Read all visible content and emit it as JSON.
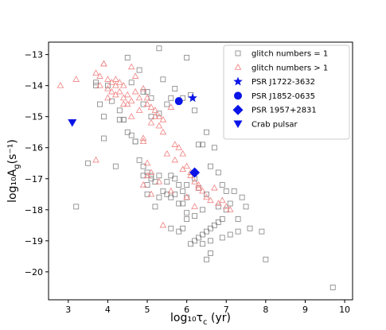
{
  "chart_data": {
    "type": "scatter",
    "xlabel": "log₁₀τ",
    "xlabel_sub": "c",
    "xlabel_unit": " (yr)",
    "ylabel": "log₁₀A",
    "ylabel_sub": "g",
    "ylabel_unit": "(s⁻¹)",
    "xlim": [
      2.5,
      10.2
    ],
    "ylim": [
      -20.9,
      -12.6
    ],
    "xticks": [
      "3",
      "4",
      "5",
      "6",
      "7",
      "8",
      "9",
      "10"
    ],
    "yticks": [
      "−13",
      "−14",
      "−15",
      "−16",
      "−17",
      "−18",
      "−19",
      "−20"
    ],
    "xtick_values": [
      3,
      4,
      5,
      6,
      7,
      8,
      9,
      10
    ],
    "ytick_values": [
      -13,
      -14,
      -15,
      -16,
      -17,
      -18,
      -19,
      -20
    ],
    "legend_position": "top-right",
    "colors": {
      "squares": "#808080",
      "triangles": "#f08080",
      "special": "#0a14e6"
    },
    "series": [
      {
        "name": "glitch numbers = 1",
        "marker": "square",
        "x": [
          3.5,
          3.2,
          3.7,
          3.9,
          3.9,
          4.0,
          4.2,
          4.4,
          4.5,
          4.6,
          4.8,
          4.9,
          4.9,
          5.0,
          5.1,
          5.1,
          5.3,
          5.3,
          5.4,
          5.5,
          5.6,
          5.7,
          5.9,
          6.0,
          6.1,
          6.2,
          6.3,
          6.4,
          6.5,
          6.6,
          6.7,
          6.8,
          6.9,
          7.0,
          7.1,
          7.3,
          7.9,
          9.7,
          8.0,
          7.5,
          7.4,
          7.2,
          7.1,
          7.0,
          6.9,
          6.8,
          6.7,
          6.6,
          6.5,
          6.4,
          6.3,
          6.2,
          6.1,
          6.0,
          5.9,
          5.9,
          5.8,
          5.7,
          5.6,
          5.5,
          5.4,
          5.3,
          5.2,
          5.1,
          5.0,
          5.0,
          4.9,
          4.8,
          4.7,
          4.6,
          4.5,
          4.4,
          4.3,
          4.1,
          6.0,
          6.3,
          6.5,
          6.8,
          5.8,
          5.6,
          5.2,
          5.0,
          4.9,
          5.3,
          5.5,
          5.7,
          6.2,
          6.4,
          6.6,
          6.9,
          7.3,
          7.6,
          5.6,
          6.0,
          6.2,
          6.4,
          6.6,
          5.8,
          6.5,
          6.0,
          5.9,
          5.1,
          4.7,
          4.3,
          3.7,
          3.8
        ],
        "y": [
          -16.5,
          -17.9,
          -13.9,
          -15.0,
          -15.7,
          -14.0,
          -16.6,
          -15.1,
          -13.1,
          -13.9,
          -13.5,
          -14.2,
          -14.6,
          -14.2,
          -14.4,
          -15.0,
          -12.8,
          -14.9,
          -13.8,
          -14.6,
          -14.4,
          -14.1,
          -14.4,
          -13.1,
          -14.3,
          -14.8,
          -15.9,
          -15.9,
          -15.5,
          -16.6,
          -16.0,
          -16.8,
          -17.2,
          -17.4,
          -18.8,
          -18.7,
          -18.7,
          -20.5,
          -19.6,
          -17.9,
          -17.6,
          -17.4,
          -17.8,
          -18.0,
          -18.3,
          -18.4,
          -18.5,
          -18.6,
          -18.7,
          -18.8,
          -18.9,
          -19.0,
          -19.1,
          -18.3,
          -17.8,
          -17.4,
          -17.2,
          -17.0,
          -16.9,
          -17.1,
          -17.4,
          -17.6,
          -17.1,
          -17.0,
          -17.2,
          -16.8,
          -16.6,
          -16.4,
          -15.8,
          -15.6,
          -15.5,
          -15.1,
          -14.8,
          -14.5,
          -17.6,
          -17.3,
          -17.5,
          -17.9,
          -18.7,
          -18.6,
          -17.9,
          -17.5,
          -16.9,
          -16.9,
          -17.5,
          -17.5,
          -18.2,
          -19.1,
          -19.4,
          -18.9,
          -18.3,
          -18.6,
          -17.6,
          -17.2,
          -17.0,
          -18.0,
          -19.0,
          -17.8,
          -19.6,
          -18.1,
          -18.6,
          -16.9,
          -15.8,
          -15.1,
          -14.0,
          -14.6
        ]
      },
      {
        "name": "glitch numbers > 1",
        "marker": "triangle",
        "x": [
          2.8,
          3.2,
          3.7,
          3.8,
          3.8,
          3.9,
          4.0,
          4.0,
          4.1,
          4.1,
          4.2,
          4.2,
          4.3,
          4.3,
          4.4,
          4.4,
          4.5,
          4.5,
          4.6,
          4.6,
          4.7,
          4.7,
          4.8,
          4.8,
          4.9,
          4.9,
          5.0,
          5.0,
          5.1,
          5.1,
          5.2,
          5.2,
          5.3,
          5.3,
          5.4,
          5.4,
          5.5,
          5.6,
          5.7,
          5.8,
          5.9,
          6.0,
          6.1,
          6.2,
          6.3,
          6.4,
          6.5,
          6.7,
          6.9,
          7.0,
          7.1,
          4.9,
          5.0,
          5.1,
          5.3,
          5.6,
          5.9,
          6.1,
          6.3,
          6.6,
          6.8,
          5.1,
          5.4,
          5.7,
          6.0,
          6.2,
          4.9,
          5.0,
          3.9,
          4.2,
          4.6,
          3.7,
          4.0,
          4.4
        ],
        "y": [
          -14.0,
          -13.8,
          -13.6,
          -13.7,
          -14.0,
          -13.3,
          -14.1,
          -13.8,
          -14.2,
          -13.9,
          -14.0,
          -14.3,
          -13.9,
          -14.2,
          -14.0,
          -14.4,
          -14.6,
          -14.3,
          -14.5,
          -15.0,
          -14.2,
          -13.7,
          -14.8,
          -14.4,
          -14.1,
          -15.7,
          -14.6,
          -14.4,
          -15.2,
          -14.7,
          -15.0,
          -14.8,
          -15.3,
          -15.0,
          -15.5,
          -15.1,
          -16.2,
          -14.7,
          -15.9,
          -16.0,
          -16.2,
          -16.6,
          -16.8,
          -17.1,
          -17.2,
          -17.4,
          -17.6,
          -17.3,
          -17.7,
          -17.9,
          -18.0,
          -15.8,
          -16.5,
          -16.8,
          -17.1,
          -17.4,
          -16.7,
          -16.9,
          -17.3,
          -17.7,
          -17.8,
          -17.5,
          -18.5,
          -16.4,
          -17.6,
          -17.9,
          -17.2,
          -16.9,
          -13.3,
          -13.8,
          -13.4,
          -16.4,
          -14.4,
          -14.6
        ]
      },
      {
        "name": "PSR J1722-3632",
        "marker": "star",
        "x": [
          6.15
        ],
        "y": [
          -14.4
        ]
      },
      {
        "name": "PSR J1852-0635",
        "marker": "circle",
        "x": [
          5.8
        ],
        "y": [
          -14.5
        ]
      },
      {
        "name": "PSR 1957+2831",
        "marker": "diamond",
        "x": [
          6.2
        ],
        "y": [
          -16.8
        ]
      },
      {
        "name": "Crab pulsar",
        "marker": "triangle-down",
        "x": [
          3.1
        ],
        "y": [
          -15.2
        ]
      }
    ]
  }
}
